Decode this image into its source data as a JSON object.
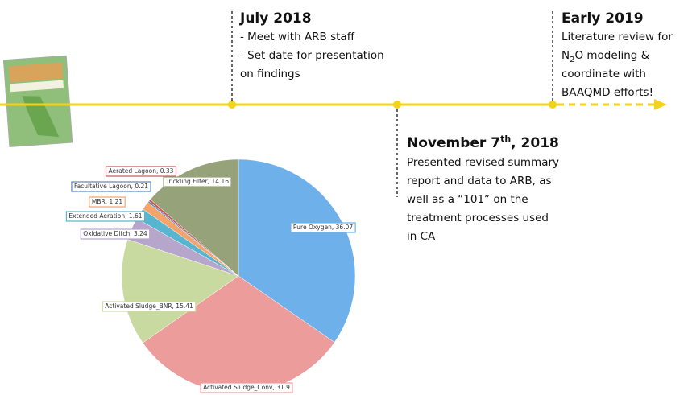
{
  "timeline": [
    {
      "title": "July 2018",
      "lines": [
        "- Meet with ARB staff",
        "- Set date for presentation",
        "on findings"
      ]
    },
    {
      "title": [
        "November 7",
        "th",
        ", 2018"
      ],
      "lines": [
        "Presented revised summary",
        "report and data to ARB, as",
        "well as a “101” on the",
        "treatment processes used",
        "in CA"
      ]
    },
    {
      "title": "Early 2019",
      "lines": [
        "Literature review for",
        [
          "N",
          "2",
          "O modeling &"
        ],
        "coordinate with",
        "BAAQMD efforts!"
      ]
    }
  ],
  "chart_data": {
    "type": "pie",
    "values": [
      36.07,
      31.9,
      15.41,
      3.24,
      1.61,
      1.21,
      0.21,
      0.33,
      14.16
    ],
    "value_labels": [
      "Pure Oxygen, 36.07",
      "Activated Sludge_Conv, 31.9",
      "Activated Sludge_BNR, 15.41",
      "Oxidative Ditch, 3.24",
      "Extended Aeration, 1.61",
      "MBR, 1.21",
      "Facultative Lagoon, 0.21",
      "Aerated Lagoon, 0.33",
      "Trickling Filter, 14.16"
    ],
    "colors": [
      "#6eb0ea",
      "#ec9c9a",
      "#c8da9f",
      "#b7a6cc",
      "#58b5d0",
      "#f4a46a",
      "#5a86c0",
      "#c55a57",
      "#96a27a"
    ]
  }
}
